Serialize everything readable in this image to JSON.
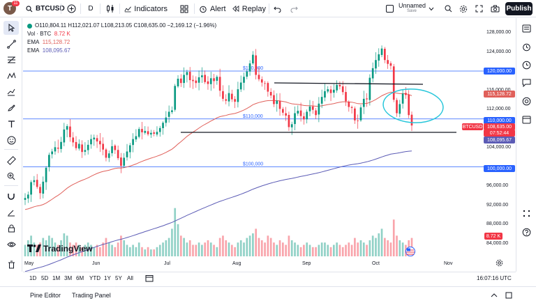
{
  "topbar": {
    "avatar_letter": "T",
    "avatar_badge": "11",
    "symbol": "BTCUSD",
    "interval": "D",
    "indicators_label": "Indicators",
    "alert_label": "Alert",
    "replay_label": "Replay",
    "layout_name": "Unnamed",
    "layout_status": "Save",
    "publish_label": "Publish"
  },
  "legend": {
    "ohlc": "O110,804.11 H112,021.07 L108,213.05 C108,635.00 −2,169.12 (−1.96%)",
    "vol_label": "Vol · BTC",
    "vol_value": "8.72 K",
    "ema1_label": "EMA",
    "ema1_value": "115,128.72",
    "ema2_label": "EMA",
    "ema2_value": "108,095.67"
  },
  "colors": {
    "ema_fast": "#e0605a",
    "ema_slow": "#5b5bb5",
    "horizontal_lines": "#2962ff",
    "up": "#089981",
    "down": "#f23645",
    "trendline": "#131722",
    "ellipse": "#26c6da"
  },
  "chart_data": {
    "type": "candlestick",
    "symbol": "BTCUSD",
    "y_axis": [
      "128,000.00",
      "124,000.00",
      "116,000.00",
      "112,000.00",
      "104,000.00",
      "96,000.00",
      "92,000.00",
      "88,000.00",
      "84,000.00"
    ],
    "ylim": [
      82500,
      130000
    ],
    "x_axis": [
      "May",
      "Jun",
      "Jul",
      "Aug",
      "Sep",
      "Oct",
      "Nov"
    ],
    "horizontal_levels": [
      {
        "label": "$120,000",
        "value": 120000
      },
      {
        "label": "$110,000",
        "value": 110000
      },
      {
        "label": "$100,000",
        "value": 100000
      }
    ],
    "level_tags": [
      "120,000.00",
      "110,000.00",
      "100,000.00"
    ],
    "price_tags": {
      "symbol_tag": "BTCUSD",
      "last": "108,635.00",
      "countdown": "07:52:44",
      "ema_fast": "115,128.72",
      "ema_slow": "108,095.67",
      "volume": "8.72 K"
    },
    "closes": [
      93500,
      94200,
      96800,
      97200,
      95800,
      94500,
      96900,
      99800,
      102500,
      103200,
      104100,
      103800,
      105200,
      107800,
      108500,
      106200,
      105100,
      103900,
      104800,
      103100,
      103500,
      104600,
      105800,
      106100,
      105300,
      104700,
      103600,
      101900,
      102800,
      104300,
      103500,
      101800,
      100200,
      101900,
      103200,
      104500,
      105800,
      106400,
      107900,
      107200,
      107500,
      106800,
      107100,
      106900,
      107300,
      108100,
      109200,
      110300,
      111500,
      111800,
      116900,
      118400,
      117500,
      119200,
      119800,
      118100,
      117900,
      117500,
      118700,
      119100,
      117700,
      117300,
      118500,
      117900,
      118800,
      115900,
      114200,
      113800,
      115400,
      114100,
      113600,
      116200,
      117600,
      118800,
      119900,
      121600,
      123400,
      119200,
      118300,
      117600,
      117400,
      115700,
      114900,
      113100,
      113800,
      112100,
      111300,
      110700,
      108300,
      108900,
      111200,
      111700,
      110600,
      109900,
      111500,
      112600,
      111900,
      110800,
      113200,
      114600,
      115800,
      116200,
      115400,
      116100,
      117100,
      116800,
      115600,
      113700,
      112500,
      112300,
      109700,
      109600,
      112400,
      114200,
      114100,
      118600,
      120600,
      122300,
      123500,
      124700,
      122300,
      121500,
      121100,
      114000,
      111200,
      113100,
      115300,
      115000,
      110800,
      108635
    ],
    "volumes": [
      5,
      7,
      9,
      6,
      5,
      6,
      8,
      7,
      9,
      8,
      6,
      5,
      7,
      10,
      9,
      6,
      5,
      6,
      5,
      4,
      5,
      6,
      5,
      4,
      5,
      4,
      6,
      8,
      6,
      5,
      4,
      6,
      9,
      7,
      5,
      4,
      5,
      4,
      6,
      4,
      3,
      4,
      3,
      3,
      4,
      5,
      6,
      7,
      8,
      12,
      21,
      14,
      9,
      8,
      6,
      7,
      5,
      5,
      6,
      5,
      6,
      7,
      6,
      5,
      4,
      8,
      9,
      7,
      6,
      5,
      4,
      6,
      7,
      6,
      8,
      9,
      10,
      12,
      8,
      7,
      6,
      9,
      8,
      6,
      5,
      7,
      6,
      5,
      9,
      7,
      6,
      5,
      4,
      5,
      6,
      5,
      4,
      4,
      5,
      6,
      6,
      5,
      4,
      5,
      6,
      5,
      4,
      5,
      6,
      5,
      8,
      6,
      7,
      6,
      5,
      7,
      9,
      8,
      10,
      12,
      8,
      7,
      6,
      16,
      9,
      7,
      6,
      5,
      7,
      8
    ]
  },
  "time_axis_time": "16:07:16 UTC",
  "bottom": {
    "ranges": [
      "1D",
      "5D",
      "1M",
      "3M",
      "6M",
      "YTD",
      "1Y",
      "5Y",
      "All"
    ],
    "tabs": [
      "Pine Editor",
      "Trading Panel"
    ]
  },
  "watermark": "TradingView"
}
